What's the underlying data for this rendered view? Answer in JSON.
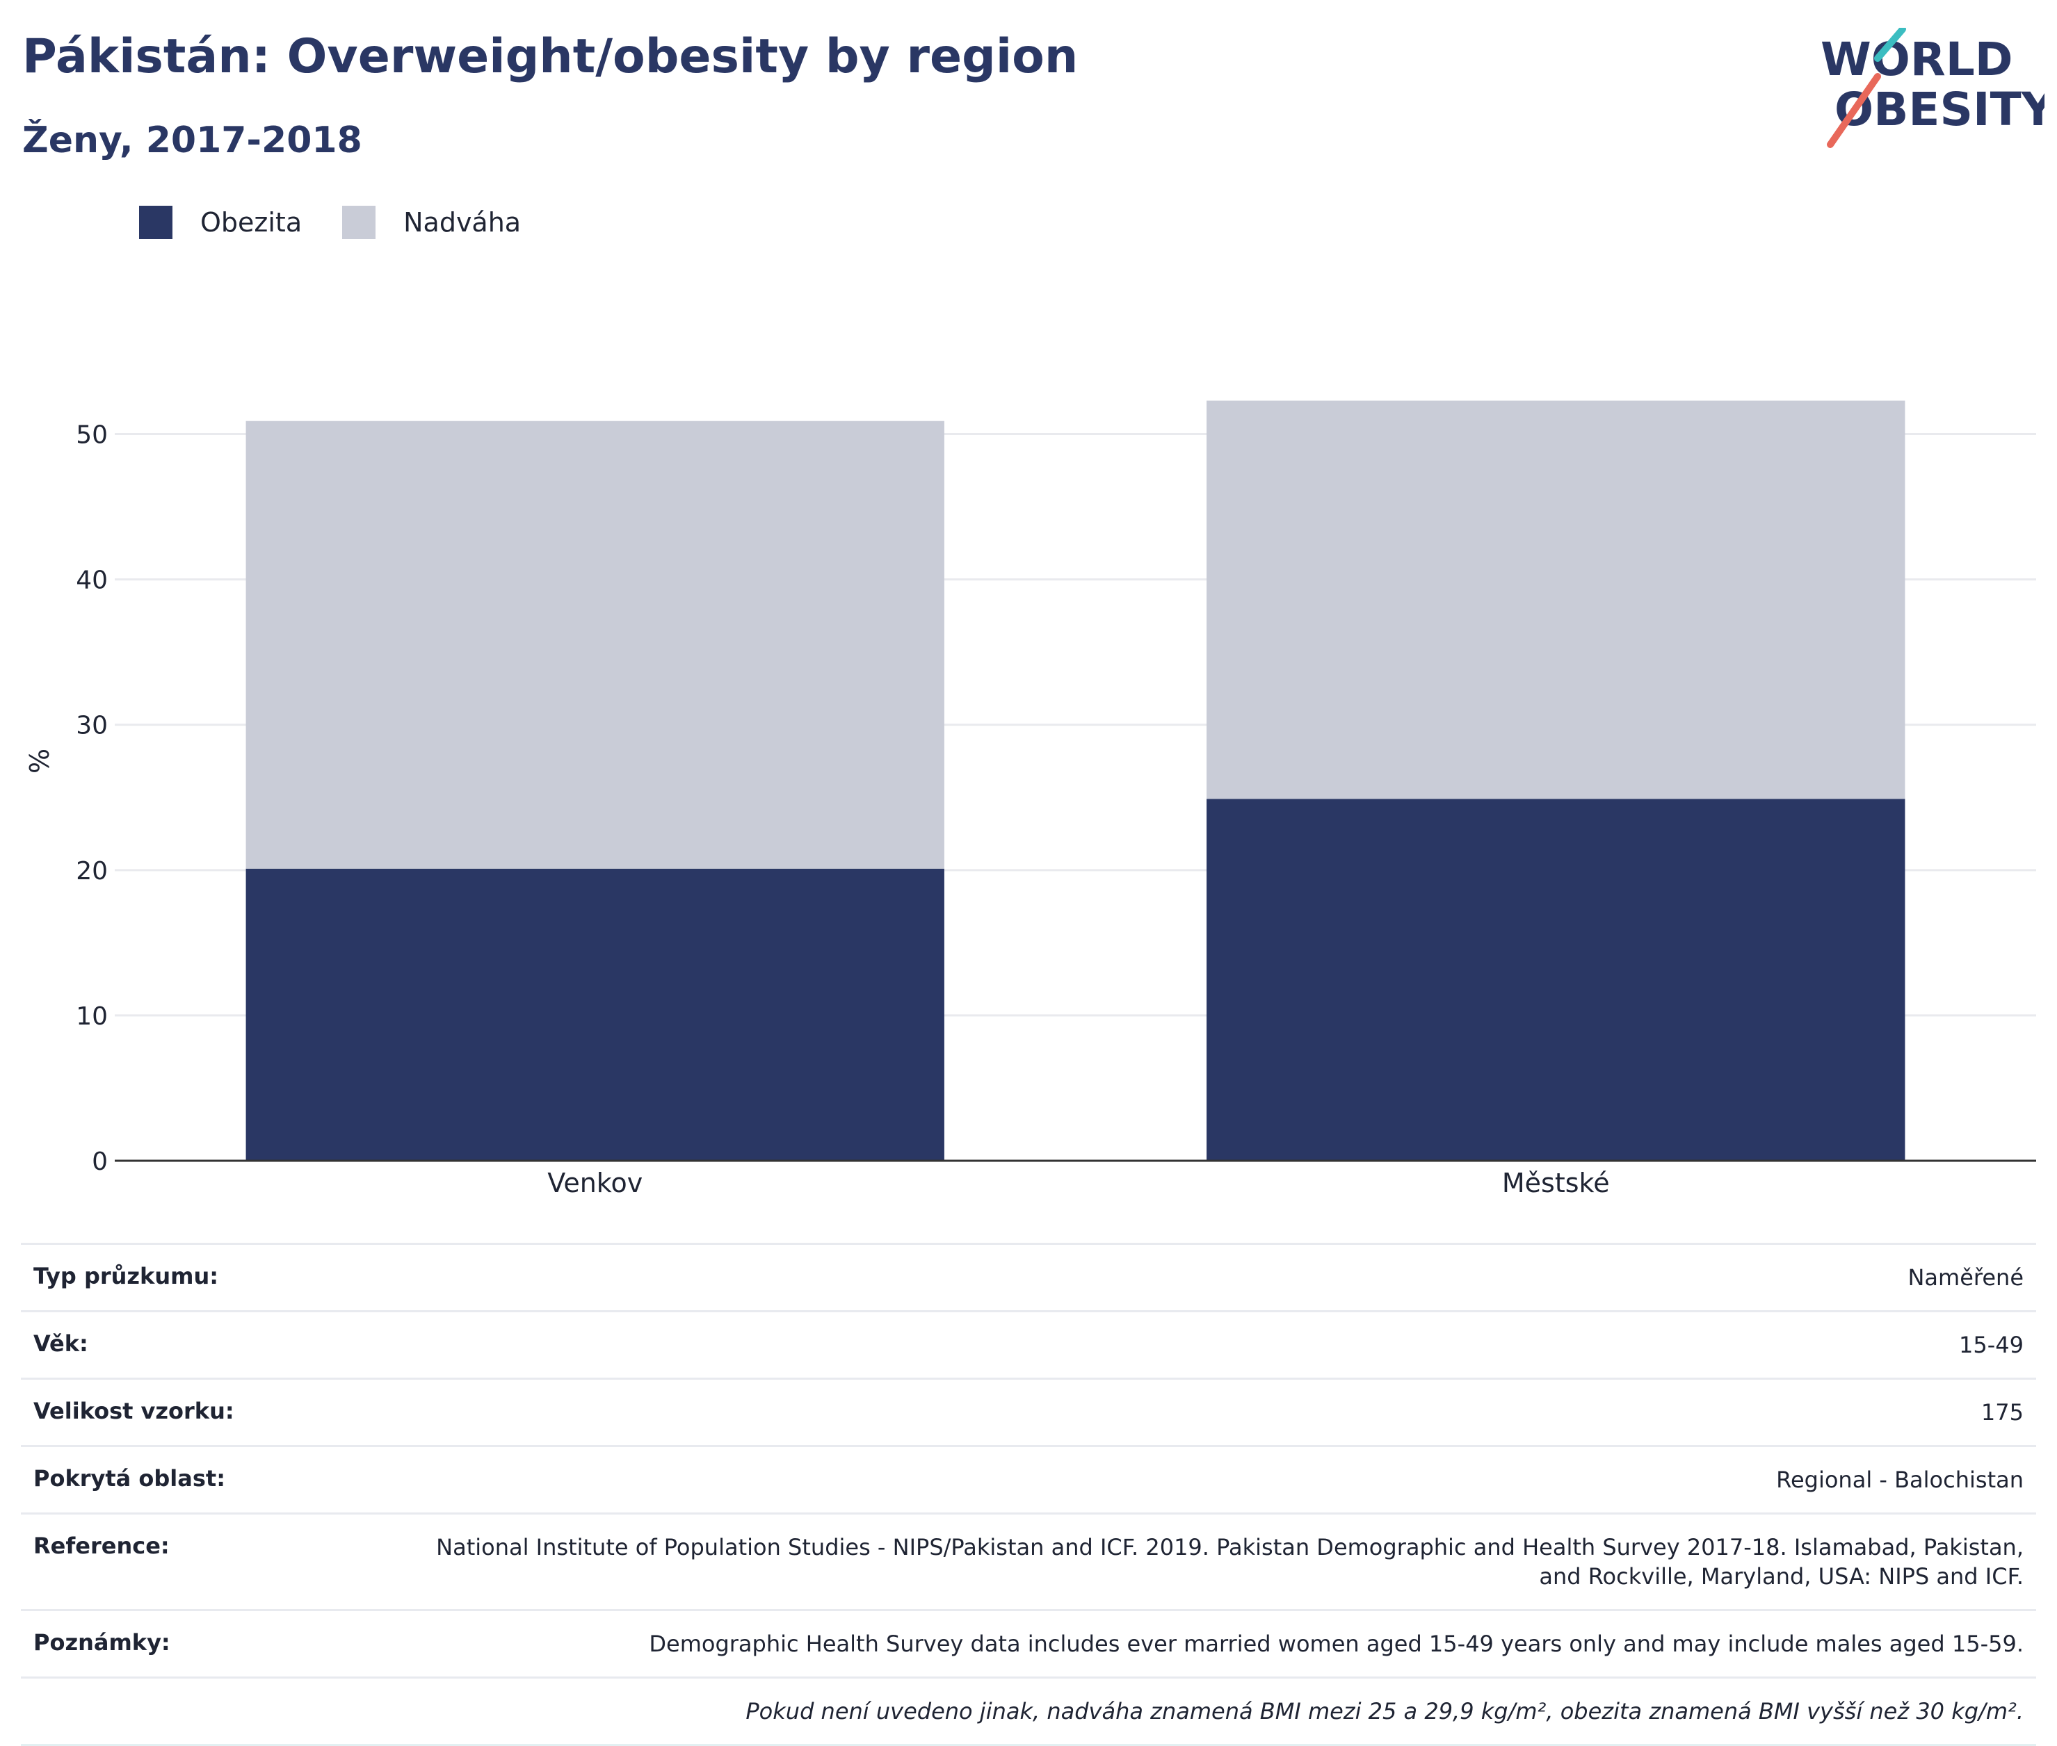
{
  "header": {
    "title": "Pákistán: Overweight/obesity by region",
    "subtitle": "Ženy, 2017-2018"
  },
  "logo": {
    "line1": "WORLD",
    "line2": "OBESITY",
    "accent_teal": "#3bbdc1",
    "accent_red": "#e8685a"
  },
  "colors": {
    "obesity": "#2a3764",
    "overweight": "#c9ccd7",
    "grid": "#e9eaee",
    "axis": "#333333"
  },
  "chart_data": {
    "type": "bar",
    "stacked": true,
    "categories": [
      "Venkov",
      "Městské"
    ],
    "series": [
      {
        "name": "Obezita",
        "values": [
          20.1,
          24.9
        ]
      },
      {
        "name": "Nadváha",
        "values": [
          30.8,
          27.4
        ]
      }
    ],
    "ylabel": "%",
    "ylim": [
      0,
      55
    ],
    "yticks": [
      0,
      10,
      20,
      30,
      40,
      50
    ],
    "grid": true,
    "legend_position": "top-left"
  },
  "info": {
    "rows": [
      {
        "key": "Typ průzkumu:",
        "value": "Naměřené"
      },
      {
        "key": "Věk:",
        "value": "15-49"
      },
      {
        "key": "Velikost vzorku:",
        "value": "175"
      },
      {
        "key": "Pokrytá oblast:",
        "value": "Regional - Balochistan"
      },
      {
        "key": "Reference:",
        "value": "National Institute of Population Studies - NIPS/Pakistan and ICF. 2019. Pakistan Demographic and Health Survey 2017-18. Islamabad, Pakistan, and Rockville, Maryland, USA: NIPS and ICF."
      },
      {
        "key": "Poznámky:",
        "value": "Demographic Health Survey data includes ever married women aged 15-49 years only and may include males aged 15-59."
      }
    ],
    "footnote": "Pokud není uvedeno jinak, nadváha znamená BMI mezi 25 a 29,9 kg/m², obezita znamená BMI vyšší než 30 kg/m²."
  }
}
